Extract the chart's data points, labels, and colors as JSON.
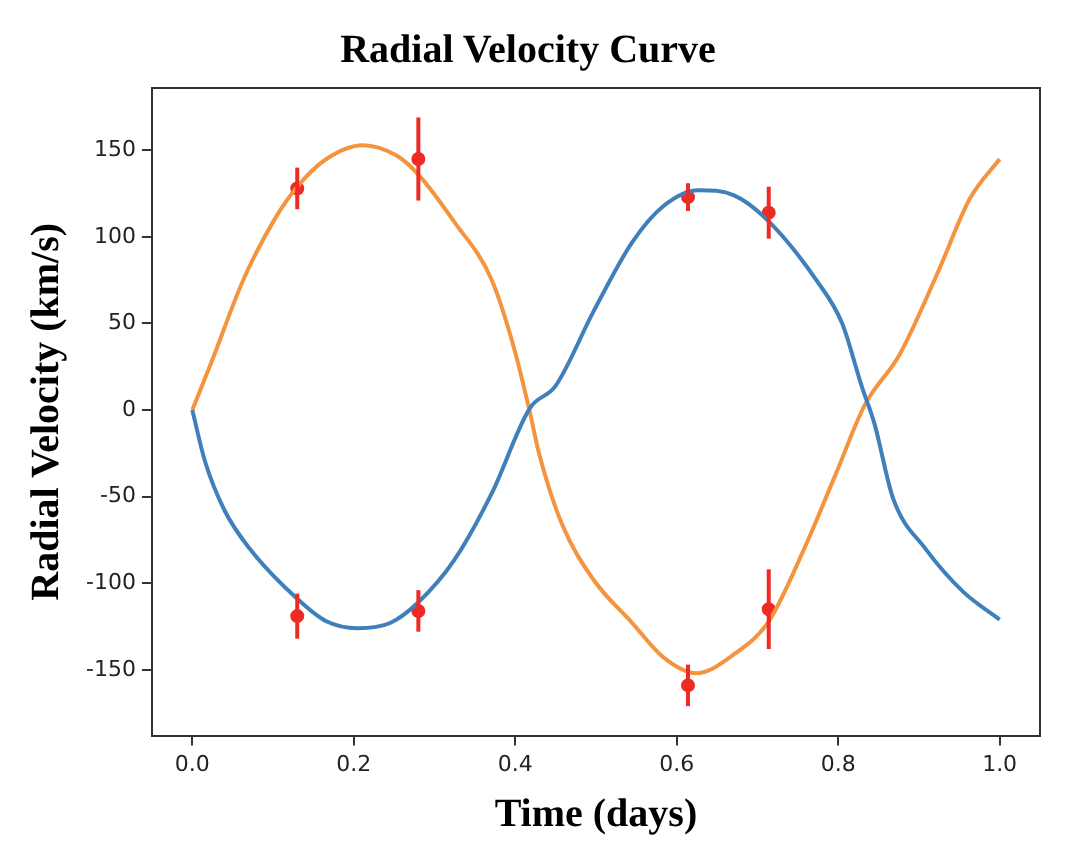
{
  "chart_data": {
    "type": "line",
    "title": "Radial Velocity Curve",
    "xlabel": "Time (days)",
    "ylabel": "Radial Velocity (km/s)",
    "xlim": [
      -0.05,
      1.05
    ],
    "ylim": [
      -188,
      186
    ],
    "xticks": [
      {
        "value": 0,
        "label": "0.0"
      },
      {
        "value": 0.2,
        "label": "0.2"
      },
      {
        "value": 0.4,
        "label": "0.4"
      },
      {
        "value": 0.6,
        "label": "0.6"
      },
      {
        "value": 0.8,
        "label": "0.8"
      },
      {
        "value": 1,
        "label": "1.0"
      }
    ],
    "yticks": [
      -150,
      -100,
      -50,
      0,
      50,
      100,
      150
    ],
    "grid": false,
    "legend": false,
    "series": [
      {
        "type": "line",
        "marker": "none",
        "color": "#3f7fba",
        "x": [
          0,
          0.016,
          0.04,
          0.071,
          0.13,
          0.166,
          0.205,
          0.245,
          0.28,
          0.324,
          0.371,
          0.418,
          0.45,
          0.497,
          0.545,
          0.584,
          0.627,
          0.671,
          0.714,
          0.773,
          0.805,
          0.829,
          0.845,
          0.868,
          0.908,
          0.955,
          1.0
        ],
        "values": [
          0,
          -30,
          -58,
          -80,
          -109,
          -122,
          -126,
          -123,
          -111,
          -87,
          -48,
          1,
          14,
          57,
          97,
          118,
          127,
          124,
          109,
          75,
          50,
          14,
          -8,
          -51,
          -80,
          -105,
          -121
        ]
      },
      {
        "type": "line",
        "marker": "none",
        "color": "#f4943f",
        "x": [
          0,
          0.024,
          0.063,
          0.103,
          0.13,
          0.166,
          0.211,
          0.253,
          0.28,
          0.324,
          0.371,
          0.399,
          0.418,
          0.43,
          0.458,
          0.497,
          0.545,
          0.584,
          0.624,
          0.671,
          0.714,
          0.758,
          0.797,
          0.833,
          0.876,
          0.923,
          0.963,
          1.0
        ],
        "values": [
          0,
          28,
          75,
          111,
          129,
          145,
          153,
          147,
          136,
          109,
          75,
          35,
          -1,
          -26,
          -66,
          -98,
          -123,
          -143,
          -152,
          -141,
          -122,
          -80,
          -37,
          3,
          32,
          79,
          122,
          145
        ]
      },
      {
        "type": "scatter",
        "marker": "circle",
        "color": "#ee2a24",
        "x": [
          0.13,
          0.28,
          0.614,
          0.714,
          0.13,
          0.28,
          0.614,
          0.714
        ],
        "values": [
          128,
          145,
          123,
          114,
          -119,
          -116,
          -159,
          -115
        ],
        "errors": [
          12,
          24,
          8,
          15,
          13,
          12,
          12,
          23
        ]
      }
    ]
  }
}
